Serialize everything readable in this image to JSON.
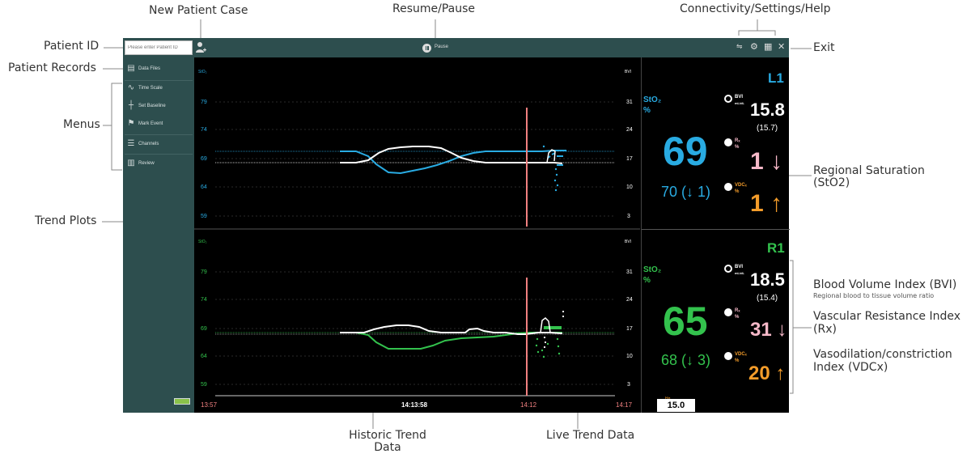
{
  "callouts": {
    "new_patient_case": "New Patient Case",
    "resume_pause": "Resume/Pause",
    "connectivity": "Connectivity/Settings/Help",
    "patient_id": "Patient ID",
    "exit": "Exit",
    "patient_records": "Patient Records",
    "menus": "Menus",
    "regional_saturation_1": "Regional Saturation",
    "regional_saturation_2": "(StO2)",
    "trend_plots": "Trend Plots",
    "bvi_title": "Blood Volume Index (BVI)",
    "bvi_sub": "Regional blood to tissue volume ratio",
    "rx_1": "Vascular Resistance Index",
    "rx_2": "(Rx)",
    "vdcx_1": "Vasodilation/constriction",
    "vdcx_2": "Index (VDCx)",
    "historic_1": "Historic Trend",
    "historic_2": "Data",
    "live": "Live Trend Data"
  },
  "topbar": {
    "patient_id_placeholder": "Please enter Patient ID",
    "pause_label": "Pause",
    "icons": [
      "connectivity-icon",
      "gear-icon",
      "help-icon",
      "close-icon"
    ]
  },
  "sidebar": {
    "items": [
      {
        "label": "Data Files",
        "icon": "file-icon"
      },
      {
        "label": "Time Scale",
        "icon": "wave-icon"
      },
      {
        "label": "Set Baseline",
        "icon": "crosshair-icon"
      },
      {
        "label": "Mark Event",
        "icon": "flag-icon"
      },
      {
        "label": "Channels",
        "icon": "layers-icon"
      },
      {
        "label": "Review",
        "icon": "list-icon"
      }
    ]
  },
  "plots": {
    "left_axis_label": "StO₂",
    "right_axis_label": "BVI",
    "left_ticks": [
      "79",
      "74",
      "69",
      "64",
      "59"
    ],
    "right_ticks": [
      "31",
      "24",
      "17",
      "10",
      "3"
    ]
  },
  "timeline": {
    "start": "13:57",
    "current": "14:13:58",
    "marker": "14:12",
    "end": "14:17"
  },
  "channels": [
    {
      "name": "L1",
      "color": "#29abe2",
      "sto2_label": "StO₂",
      "sto2_unit": "%",
      "sto2": "69",
      "baseline": "70 (↓ 1)",
      "bvi_label": "BVI",
      "bvi_unit": "mL/dL",
      "bvi": "15.8",
      "bvi_baseline": "(15.7)",
      "rx_label": "Rₓ",
      "rx_unit": "%",
      "rx": "1 ↓",
      "vdcx_label": "VDCₓ",
      "vdcx_unit": "%",
      "vdcx": "1 ↑"
    },
    {
      "name": "R1",
      "color": "#33c24d",
      "sto2_label": "StO₂",
      "sto2_unit": "%",
      "sto2": "65",
      "baseline": "68 (↓ 3)",
      "bvi_label": "BVI",
      "bvi_unit": "mL/dL",
      "bvi": "18.5",
      "bvi_baseline": "(15.4)",
      "rx_label": "Rₓ",
      "rx_unit": "%",
      "rx": "31 ↓",
      "vdcx_label": "VDCₓ",
      "vdcx_unit": "%",
      "vdcx": "20 ↑"
    }
  ],
  "hgb": {
    "unit": "Hg g/dL",
    "value": "15.0"
  },
  "colors": {
    "sidebar": "#2d4e4e",
    "rx": "#f6b8c8",
    "vdcx": "#f39c2a",
    "marker": "#f08080"
  }
}
